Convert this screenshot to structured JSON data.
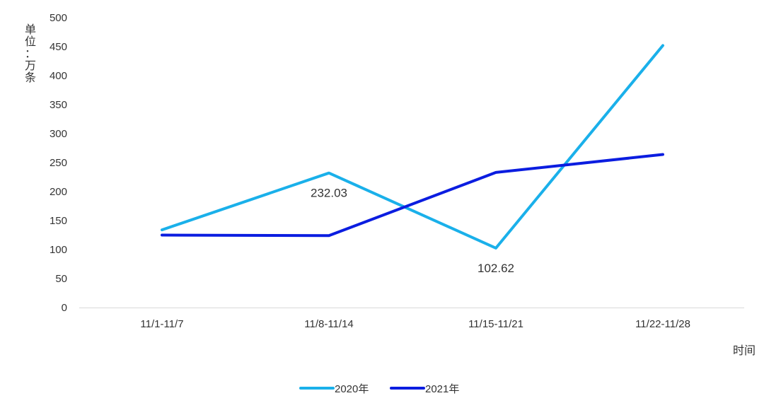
{
  "chart_data": {
    "type": "line",
    "title": "",
    "xlabel": "时间",
    "ylabel": "单位：万条",
    "categories": [
      "11/1-11/7",
      "11/8-11/14",
      "11/15-11/21",
      "11/22-11/28"
    ],
    "ylim": [
      0,
      500
    ],
    "yticks": [
      0,
      50,
      100,
      150,
      200,
      250,
      300,
      350,
      400,
      450,
      500
    ],
    "grid": false,
    "legend_position": "bottom",
    "series": [
      {
        "name": "2020年",
        "values": [
          134,
          232.03,
          102.62,
          452
        ],
        "color": "#1ab0ea"
      },
      {
        "name": "2021年",
        "values": [
          125,
          124,
          233,
          264
        ],
        "color": "#0b1de0"
      }
    ],
    "data_labels": [
      {
        "series": 0,
        "index": 1,
        "text": "232.03"
      },
      {
        "series": 0,
        "index": 2,
        "text": "102.62"
      }
    ]
  }
}
